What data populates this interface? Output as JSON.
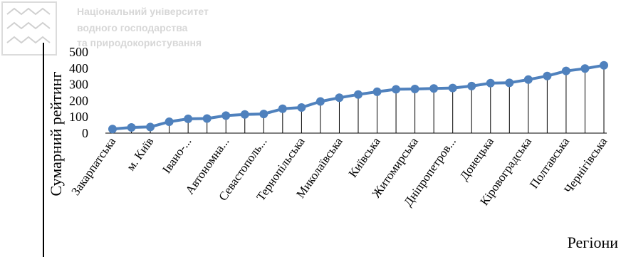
{
  "watermark": {
    "lines": [
      "Національний університет",
      "водного господарства",
      "та природокористування"
    ]
  },
  "colors": {
    "line": "#4f81bd",
    "marker": "#4f81bd",
    "axis": "#000000",
    "drop_lines": "#000000"
  },
  "chart_data": {
    "type": "line",
    "ylabel": "Сумарний рейтинг",
    "xlabel": "Регіони",
    "ylim": [
      0,
      500
    ],
    "yticks": [
      0,
      100,
      200,
      300,
      400,
      500
    ],
    "grid": false,
    "drop_lines": true,
    "markers": true,
    "categories": [
      "Закарпатська",
      "",
      "м. Київ",
      "",
      "Івано-...",
      "",
      "Автономна...",
      "",
      "Севастополь...",
      "",
      "Тернопільська",
      "",
      "Миколаївська",
      "",
      "Київська",
      "",
      "Житомирська",
      "",
      "Дніпропетров...",
      "",
      "Донецька",
      "",
      "Кіровоградська",
      "",
      "Полтавська",
      "",
      "Чернігівська"
    ],
    "values": [
      25,
      35,
      38,
      70,
      88,
      90,
      108,
      115,
      118,
      150,
      158,
      195,
      218,
      238,
      255,
      270,
      272,
      275,
      278,
      290,
      308,
      310,
      330,
      352,
      383,
      398,
      418
    ]
  }
}
